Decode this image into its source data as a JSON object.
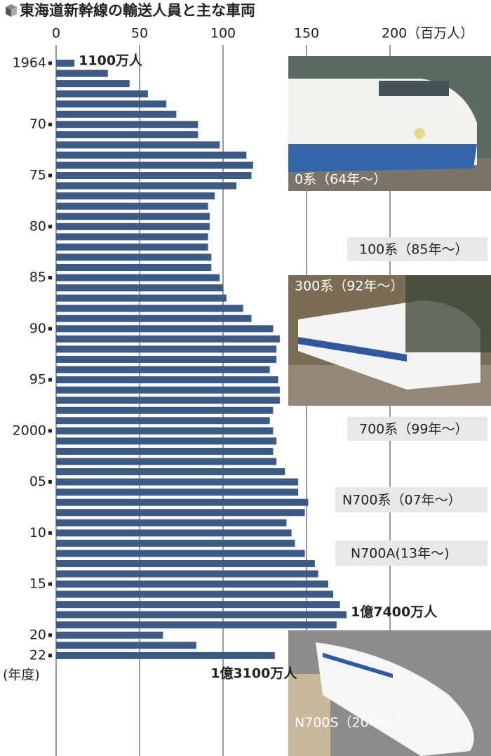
{
  "chart_data": {
    "type": "bar",
    "orientation": "horizontal",
    "title": "東海道新幹線の輸送人員と主な車両",
    "category_axis_label": "(年度)",
    "categories": [
      "1964",
      null,
      null,
      null,
      null,
      null,
      "70",
      null,
      null,
      null,
      null,
      "75",
      null,
      null,
      null,
      null,
      "80",
      null,
      null,
      null,
      null,
      "85",
      null,
      null,
      null,
      null,
      "90",
      null,
      null,
      null,
      null,
      "95",
      null,
      null,
      null,
      null,
      "2000",
      null,
      null,
      null,
      null,
      "05",
      null,
      null,
      null,
      null,
      "10",
      null,
      null,
      null,
      null,
      "15",
      null,
      null,
      null,
      null,
      "20",
      null,
      "22"
    ],
    "values": [
      11,
      31,
      44,
      55,
      66,
      72,
      85,
      85,
      98,
      114,
      118,
      117,
      108,
      95,
      91,
      92,
      92,
      91,
      91,
      93,
      93,
      98,
      100,
      102,
      112,
      117,
      130,
      134,
      132,
      132,
      128,
      133,
      134,
      134,
      130,
      128,
      130,
      132,
      130,
      132,
      137,
      145,
      145,
      151,
      149,
      138,
      141,
      143,
      149,
      155,
      157,
      163,
      166,
      170,
      174,
      168,
      64,
      84,
      131
    ],
    "value_labels": [
      "1100万人",
      null,
      null,
      null,
      null,
      null,
      null,
      null,
      null,
      null,
      null,
      null,
      null,
      null,
      null,
      null,
      null,
      null,
      null,
      null,
      null,
      null,
      null,
      null,
      null,
      null,
      null,
      null,
      null,
      null,
      null,
      null,
      null,
      null,
      null,
      null,
      null,
      null,
      null,
      null,
      null,
      null,
      null,
      null,
      null,
      null,
      null,
      null,
      null,
      null,
      null,
      null,
      null,
      null,
      "1億7400万人",
      null,
      null,
      null,
      "1億3100万人"
    ],
    "color": "#3b5a88",
    "xlim": [
      0,
      200
    ],
    "xticks": [
      0,
      50,
      100,
      150,
      {
        "value": 200,
        "label": "200（百万人）"
      }
    ],
    "grid": true,
    "annotations": [
      "0系（64年～）",
      "100系（85年～）",
      "300系（92年～）",
      "700系（99年～）",
      "N700系（07年～）",
      "N700A(13年～)",
      "N700S（20年～）"
    ]
  }
}
